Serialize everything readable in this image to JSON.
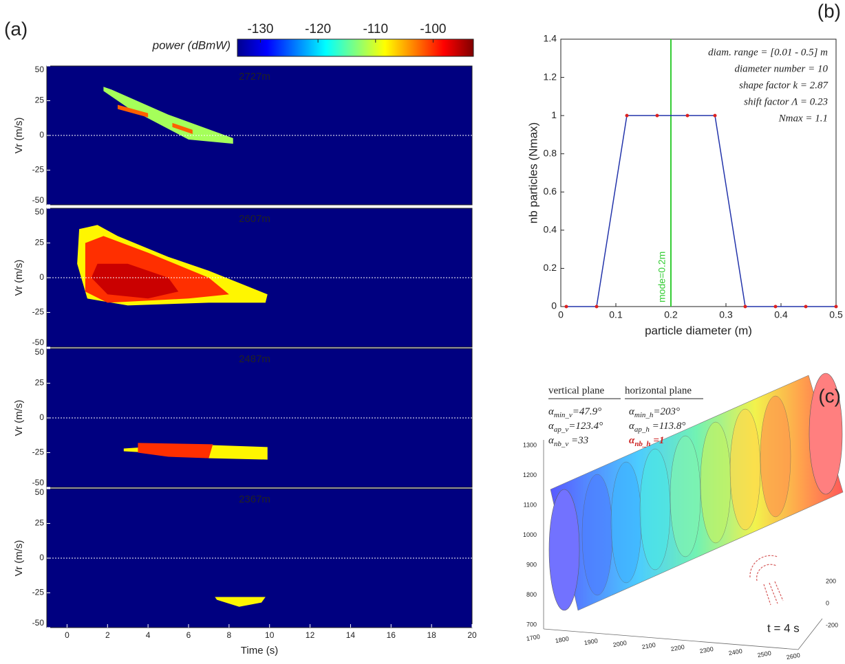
{
  "chart_data": [
    {
      "type": "heatmap",
      "panel_label": "(a)",
      "colorbar": {
        "label": "power (dBmW)",
        "lim": [
          -134,
          -93
        ],
        "ticks": [
          -130,
          -120,
          -110,
          -100
        ]
      },
      "xlabel": "Time (s)",
      "ylabel": "Vr (m/s)",
      "xlim": [
        -1,
        20
      ],
      "xticks": [
        0,
        2,
        4,
        6,
        8,
        10,
        12,
        14,
        16,
        18,
        20
      ],
      "ylim": [
        -50,
        50
      ],
      "yticks": [
        -50,
        -25,
        0,
        25,
        50
      ],
      "subplots": [
        {
          "title": "2727m",
          "regions": [
            {
              "power": -112,
              "x": [
                1.8,
                2.2,
                5,
                8.2,
                8.2,
                6,
                3,
                1.8
              ],
              "y": [
                35,
                33,
                15,
                -2,
                -6,
                -3,
                20,
                32
              ]
            },
            {
              "power": -102,
              "x": [
                2.5,
                4,
                4,
                2.5
              ],
              "y": [
                22,
                16,
                13,
                19
              ]
            },
            {
              "power": -102,
              "x": [
                5.2,
                6.2,
                6.2,
                5.2
              ],
              "y": [
                9,
                4,
                1,
                6
              ]
            }
          ]
        },
        {
          "title": "2607m",
          "regions": [
            {
              "power": -108,
              "x": [
                0.6,
                1.5,
                2.5,
                5,
                7,
                9.9,
                9.8,
                7,
                3,
                1,
                0.5
              ],
              "y": [
                35,
                38,
                30,
                15,
                5,
                -12,
                -18,
                -18,
                -20,
                -15,
                10
              ]
            },
            {
              "power": -100,
              "x": [
                0.9,
                1.8,
                4,
                7,
                8,
                6,
                2,
                0.9
              ],
              "y": [
                25,
                30,
                18,
                0,
                -12,
                -15,
                -18,
                -10
              ]
            },
            {
              "power": -96,
              "x": [
                1.5,
                3,
                5,
                5.5,
                4,
                2,
                1.2
              ],
              "y": [
                10,
                10,
                0,
                -10,
                -15,
                -12,
                0
              ]
            }
          ]
        },
        {
          "title": "2487m",
          "regions": [
            {
              "power": -108,
              "x": [
                2.8,
                6,
                9.9,
                9.9,
                7,
                4,
                2.8
              ],
              "y": [
                -22,
                -19,
                -21,
                -30,
                -29,
                -25,
                -24
              ]
            },
            {
              "power": -100,
              "x": [
                3.5,
                7.2,
                7,
                5,
                3.5
              ],
              "y": [
                -18,
                -19,
                -29,
                -28,
                -25
              ]
            }
          ]
        },
        {
          "title": "2367m",
          "regions": [
            {
              "power": -108,
              "x": [
                7.3,
                9.8,
                9.6,
                8.5,
                7.4
              ],
              "y": [
                -28,
                -28,
                -32,
                -35,
                -30
              ]
            }
          ]
        }
      ]
    },
    {
      "type": "line",
      "panel_label": "(b)",
      "xlabel": "particle diameter (m)",
      "ylabel": "nb particles (Nmax)",
      "x": [
        0.01,
        0.065,
        0.12,
        0.175,
        0.23,
        0.28,
        0.335,
        0.39,
        0.445,
        0.5
      ],
      "values": [
        0,
        0,
        1,
        1,
        1,
        1,
        0,
        0,
        0,
        0
      ],
      "color": "#2233aa",
      "marker_color": "#dd2222",
      "xlim": [
        0,
        0.5
      ],
      "xticks": [
        0,
        0.1,
        0.2,
        0.3,
        0.4,
        0.5
      ],
      "ylim": [
        0,
        1.4
      ],
      "yticks": [
        0,
        0.2,
        0.4,
        0.6,
        0.8,
        1,
        1.2,
        1.4
      ],
      "mode": {
        "value": 0.2,
        "label": "mode=0.2m",
        "color": "#33cc33"
      },
      "annotations": [
        "diam. range = [0.01 - 0.5] m",
        "diameter number = 10",
        "shape factor k = 2.87",
        "shift factor Λ = 0.23",
        "Nmax = 1.1"
      ]
    }
  ],
  "panel_c": {
    "label": "(c)",
    "time": "t = 4 s",
    "headings": [
      "vertical plane",
      "horizontal plane"
    ],
    "vertical": [
      {
        "symbol": "α",
        "sub": "min_v",
        "text": "=47.9°"
      },
      {
        "symbol": "α",
        "sub": "ap_v",
        "text": "=123.4°"
      },
      {
        "symbol": "α",
        "sub": "nb_v",
        "text": " =33"
      }
    ],
    "horizontal": [
      {
        "symbol": "α",
        "sub": "min_h",
        "text": "=203°"
      },
      {
        "symbol": "α",
        "sub": "ap_h",
        "text": " =113.8°"
      },
      {
        "symbol": "α",
        "sub": "nb_h",
        "text": " =1"
      }
    ],
    "xticks": [
      1700,
      1800,
      1900,
      2000,
      2100,
      2200,
      2300,
      2400,
      2500,
      2600
    ],
    "yticks": [
      700,
      800,
      900,
      1000,
      1100,
      1200,
      1300
    ],
    "zticks": [
      -200,
      0,
      200
    ]
  }
}
